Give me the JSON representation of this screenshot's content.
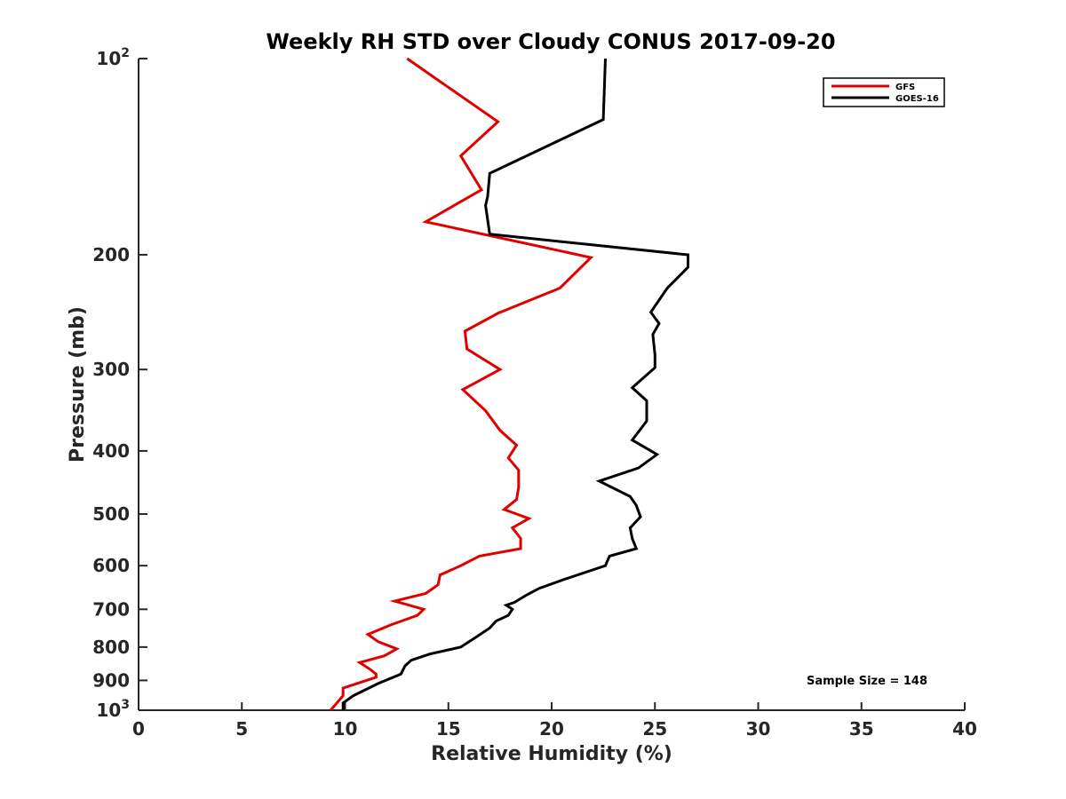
{
  "chart_data": {
    "type": "line",
    "title": "Weekly RH STD over Cloudy CONUS 2017-09-20",
    "xlabel": "Relative Humidity (%)",
    "ylabel": "Pressure (mb)",
    "xlim": [
      0,
      40
    ],
    "ylim": [
      100,
      1000
    ],
    "y_scale": "log",
    "y_reversed": true,
    "grid": false,
    "legend_position": "top-right",
    "x_ticks": [
      "0",
      "5",
      "10",
      "15",
      "20",
      "25",
      "30",
      "35",
      "40"
    ],
    "y_ticks": [
      {
        "value": 100,
        "base": "10",
        "exp": "2"
      },
      {
        "value": 200,
        "label": "200"
      },
      {
        "value": 300,
        "label": "300"
      },
      {
        "value": 400,
        "label": "400"
      },
      {
        "value": 500,
        "label": "500"
      },
      {
        "value": 600,
        "label": "600"
      },
      {
        "value": 700,
        "label": "700"
      },
      {
        "value": 800,
        "label": "800"
      },
      {
        "value": 900,
        "label": "900"
      },
      {
        "value": 1000,
        "base": "10",
        "exp": "3"
      }
    ],
    "annotation": "Sample Size = 148",
    "series": [
      {
        "name": "GFS",
        "color": "#e00000",
        "points": [
          [
            13.0,
            100
          ],
          [
            17.4,
            125
          ],
          [
            15.6,
            141
          ],
          [
            16.6,
            159
          ],
          [
            13.9,
            178
          ],
          [
            21.9,
            202
          ],
          [
            20.4,
            225
          ],
          [
            17.4,
            246
          ],
          [
            15.8,
            262
          ],
          [
            15.9,
            279
          ],
          [
            17.5,
            300
          ],
          [
            15.7,
            322
          ],
          [
            16.8,
            347
          ],
          [
            17.5,
            372
          ],
          [
            18.3,
            392
          ],
          [
            17.9,
            410
          ],
          [
            18.4,
            428
          ],
          [
            18.4,
            455
          ],
          [
            18.3,
            475
          ],
          [
            17.7,
            492
          ],
          [
            18.9,
            508
          ],
          [
            18.1,
            525
          ],
          [
            18.5,
            545
          ],
          [
            18.5,
            565
          ],
          [
            16.5,
            580
          ],
          [
            15.6,
            600
          ],
          [
            14.6,
            620
          ],
          [
            14.5,
            642
          ],
          [
            13.9,
            662
          ],
          [
            12.4,
            680
          ],
          [
            13.8,
            700
          ],
          [
            13.5,
            715
          ],
          [
            12.2,
            740
          ],
          [
            11.1,
            765
          ],
          [
            11.6,
            785
          ],
          [
            12.5,
            805
          ],
          [
            11.9,
            825
          ],
          [
            10.7,
            845
          ],
          [
            11.2,
            865
          ],
          [
            11.5,
            880
          ],
          [
            11.5,
            890
          ],
          [
            10.8,
            905
          ],
          [
            9.9,
            925
          ],
          [
            9.9,
            950
          ],
          [
            9.3,
            1000
          ]
        ]
      },
      {
        "name": "GOES-16",
        "color": "#000000",
        "points": [
          [
            22.6,
            100
          ],
          [
            22.5,
            124
          ],
          [
            17.0,
            150
          ],
          [
            16.9,
            163
          ],
          [
            16.8,
            168
          ],
          [
            17.0,
            186
          ],
          [
            26.6,
            200
          ],
          [
            26.6,
            209
          ],
          [
            25.6,
            225
          ],
          [
            24.8,
            245
          ],
          [
            25.2,
            255
          ],
          [
            24.9,
            265
          ],
          [
            25.0,
            285
          ],
          [
            25.0,
            298
          ],
          [
            23.9,
            320
          ],
          [
            24.6,
            335
          ],
          [
            24.6,
            345
          ],
          [
            24.6,
            360
          ],
          [
            23.9,
            385
          ],
          [
            25.1,
            405
          ],
          [
            24.2,
            425
          ],
          [
            22.3,
            445
          ],
          [
            23.8,
            470
          ],
          [
            24.1,
            485
          ],
          [
            24.3,
            505
          ],
          [
            23.8,
            525
          ],
          [
            23.9,
            545
          ],
          [
            24.1,
            565
          ],
          [
            22.8,
            580
          ],
          [
            22.6,
            600
          ],
          [
            20.6,
            630
          ],
          [
            19.4,
            650
          ],
          [
            18.8,
            665
          ],
          [
            18.2,
            683
          ],
          [
            17.8,
            690
          ],
          [
            18.1,
            700
          ],
          [
            17.9,
            715
          ],
          [
            17.3,
            730
          ],
          [
            17.0,
            748
          ],
          [
            16.4,
            770
          ],
          [
            15.6,
            800
          ],
          [
            14.1,
            820
          ],
          [
            13.2,
            838
          ],
          [
            12.9,
            855
          ],
          [
            12.7,
            880
          ],
          [
            11.6,
            910
          ],
          [
            10.4,
            950
          ],
          [
            9.9,
            975
          ],
          [
            9.9,
            1000
          ]
        ]
      }
    ]
  }
}
